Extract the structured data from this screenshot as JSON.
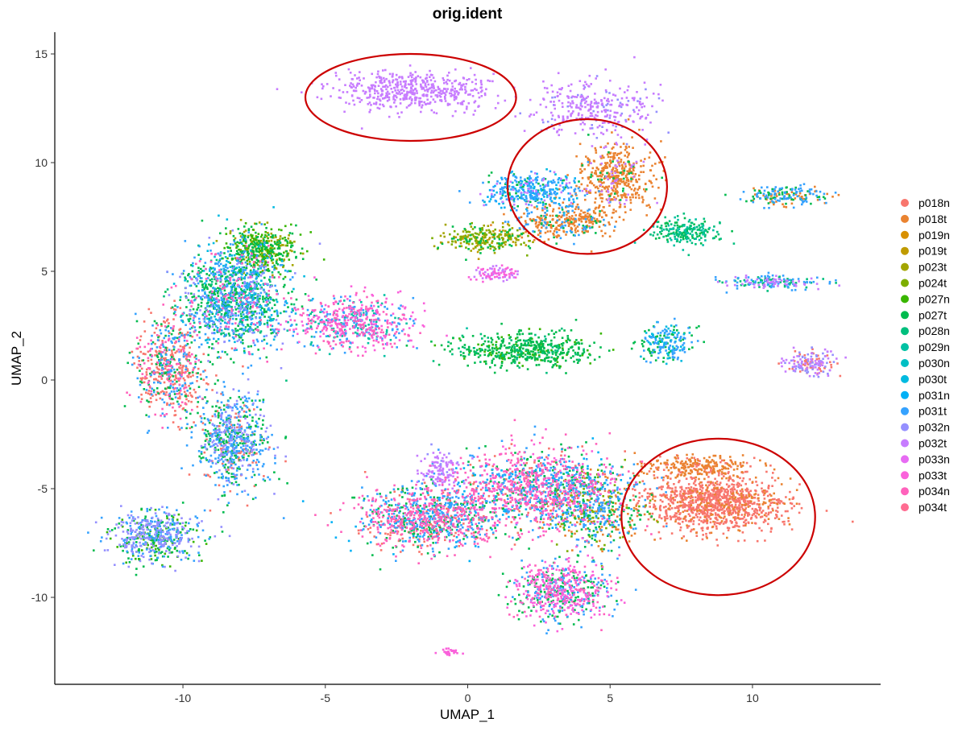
{
  "chart_data": {
    "type": "scatter",
    "title": "orig.ident",
    "xlabel": "UMAP_1",
    "ylabel": "UMAP_2",
    "xlim": [
      -14.5,
      14.5
    ],
    "ylim": [
      -14,
      16
    ],
    "x_ticks": [
      -10,
      -5,
      0,
      5,
      10
    ],
    "y_ticks": [
      -10,
      -5,
      0,
      5,
      10,
      15
    ],
    "x_tick_labels": [
      "-10",
      "-5",
      "0",
      "5",
      "10"
    ],
    "y_tick_labels": [
      "-10",
      "-5",
      "0",
      "5",
      "10",
      "15"
    ],
    "grid": false,
    "legend_position": "right",
    "series": [
      {
        "name": "p018n",
        "color": "#F8766D"
      },
      {
        "name": "p018t",
        "color": "#EA8331"
      },
      {
        "name": "p019n",
        "color": "#D89000"
      },
      {
        "name": "p019t",
        "color": "#C09B00"
      },
      {
        "name": "p023t",
        "color": "#A3A500"
      },
      {
        "name": "p024t",
        "color": "#7CAE00"
      },
      {
        "name": "p027n",
        "color": "#39B600"
      },
      {
        "name": "p027t",
        "color": "#00BB4E"
      },
      {
        "name": "p028n",
        "color": "#00BF7D"
      },
      {
        "name": "p029n",
        "color": "#00C1A3"
      },
      {
        "name": "p030n",
        "color": "#00BFC4"
      },
      {
        "name": "p030t",
        "color": "#00BAE0"
      },
      {
        "name": "p031n",
        "color": "#00B0F6"
      },
      {
        "name": "p031t",
        "color": "#35A2FF"
      },
      {
        "name": "p032n",
        "color": "#9590FF"
      },
      {
        "name": "p032t",
        "color": "#C77CFF"
      },
      {
        "name": "p033n",
        "color": "#E76BF3"
      },
      {
        "name": "p033t",
        "color": "#FA62DB"
      },
      {
        "name": "p034n",
        "color": "#FF62BC"
      },
      {
        "name": "p034t",
        "color": "#FF6C91"
      }
    ],
    "clusters": [
      {
        "cx": -2.0,
        "cy": 13.3,
        "rx": 3.4,
        "ry": 1.1,
        "n": 500,
        "mix": [
          [
            15,
            1
          ]
        ]
      },
      {
        "cx": 4.5,
        "cy": 12.5,
        "rx": 2.4,
        "ry": 1.5,
        "n": 300,
        "mix": [
          [
            15,
            0.8
          ],
          [
            14,
            0.2
          ]
        ]
      },
      {
        "cx": 5.2,
        "cy": 9.2,
        "rx": 1.6,
        "ry": 2.0,
        "n": 480,
        "mix": [
          [
            1,
            0.85
          ],
          [
            15,
            0.1
          ],
          [
            7,
            0.05
          ]
        ]
      },
      {
        "cx": 3.3,
        "cy": 7.3,
        "rx": 2.2,
        "ry": 0.9,
        "n": 320,
        "mix": [
          [
            1,
            0.7
          ],
          [
            13,
            0.2
          ],
          [
            7,
            0.1
          ]
        ]
      },
      {
        "cx": 2.2,
        "cy": 8.7,
        "rx": 2.0,
        "ry": 1.0,
        "n": 380,
        "mix": [
          [
            13,
            0.45
          ],
          [
            12,
            0.2
          ],
          [
            11,
            0.15
          ],
          [
            7,
            0.1
          ],
          [
            15,
            0.1
          ]
        ]
      },
      {
        "cx": 0.6,
        "cy": 6.5,
        "rx": 1.8,
        "ry": 0.7,
        "n": 260,
        "mix": [
          [
            4,
            0.3
          ],
          [
            5,
            0.3
          ],
          [
            7,
            0.2
          ],
          [
            3,
            0.2
          ]
        ]
      },
      {
        "cx": 7.7,
        "cy": 6.8,
        "rx": 1.3,
        "ry": 0.7,
        "n": 200,
        "mix": [
          [
            8,
            0.5
          ],
          [
            7,
            0.3
          ],
          [
            9,
            0.2
          ]
        ]
      },
      {
        "cx": 1.0,
        "cy": 4.9,
        "rx": 1.0,
        "ry": 0.4,
        "n": 90,
        "mix": [
          [
            17,
            0.6
          ],
          [
            15,
            0.4
          ]
        ]
      },
      {
        "cx": 11.2,
        "cy": 8.5,
        "rx": 1.8,
        "ry": 0.5,
        "n": 180,
        "mix": [
          [
            13,
            0.4
          ],
          [
            7,
            0.3
          ],
          [
            1,
            0.3
          ]
        ]
      },
      {
        "cx": 10.8,
        "cy": 4.5,
        "rx": 2.0,
        "ry": 0.4,
        "n": 180,
        "mix": [
          [
            13,
            0.4
          ],
          [
            8,
            0.3
          ],
          [
            15,
            0.3
          ]
        ]
      },
      {
        "cx": 7.0,
        "cy": 1.7,
        "rx": 1.1,
        "ry": 1.0,
        "n": 190,
        "mix": [
          [
            13,
            0.4
          ],
          [
            7,
            0.3
          ],
          [
            11,
            0.3
          ]
        ]
      },
      {
        "cx": 12.0,
        "cy": 0.8,
        "rx": 1.1,
        "ry": 0.7,
        "n": 170,
        "mix": [
          [
            14,
            0.35
          ],
          [
            15,
            0.35
          ],
          [
            0,
            0.3
          ]
        ]
      },
      {
        "cx": 2.0,
        "cy": 1.4,
        "rx": 2.9,
        "ry": 0.9,
        "n": 500,
        "mix": [
          [
            7,
            0.7
          ],
          [
            6,
            0.2
          ],
          [
            8,
            0.1
          ]
        ]
      },
      {
        "cx": -10.5,
        "cy": 0.5,
        "rx": 1.4,
        "ry": 3.0,
        "n": 600,
        "mix": [
          [
            0,
            0.45
          ],
          [
            18,
            0.2
          ],
          [
            13,
            0.2
          ],
          [
            7,
            0.15
          ]
        ]
      },
      {
        "cx": -8.2,
        "cy": 3.8,
        "rx": 2.2,
        "ry": 2.8,
        "n": 1300,
        "mix": [
          [
            7,
            0.3
          ],
          [
            13,
            0.25
          ],
          [
            11,
            0.15
          ],
          [
            18,
            0.1
          ],
          [
            14,
            0.1
          ],
          [
            8,
            0.1
          ]
        ]
      },
      {
        "cx": -7.2,
        "cy": 6.0,
        "rx": 1.5,
        "ry": 1.2,
        "n": 400,
        "mix": [
          [
            6,
            0.4
          ],
          [
            7,
            0.3
          ],
          [
            4,
            0.3
          ]
        ]
      },
      {
        "cx": -4.0,
        "cy": 2.6,
        "rx": 2.5,
        "ry": 1.4,
        "n": 600,
        "mix": [
          [
            17,
            0.35
          ],
          [
            18,
            0.25
          ],
          [
            13,
            0.25
          ],
          [
            9,
            0.15
          ]
        ]
      },
      {
        "cx": -8.3,
        "cy": -2.8,
        "rx": 1.6,
        "ry": 2.6,
        "n": 700,
        "mix": [
          [
            13,
            0.35
          ],
          [
            7,
            0.3
          ],
          [
            14,
            0.2
          ],
          [
            0,
            0.15
          ]
        ]
      },
      {
        "cx": -11.0,
        "cy": -7.2,
        "rx": 1.8,
        "ry": 1.5,
        "n": 550,
        "mix": [
          [
            14,
            0.4
          ],
          [
            13,
            0.25
          ],
          [
            7,
            0.2
          ],
          [
            6,
            0.15
          ]
        ]
      },
      {
        "cx": -1.0,
        "cy": -4.2,
        "rx": 0.8,
        "ry": 1.0,
        "n": 120,
        "mix": [
          [
            15,
            0.9
          ],
          [
            14,
            0.1
          ]
        ]
      },
      {
        "cx": -1.3,
        "cy": -6.3,
        "rx": 3.0,
        "ry": 1.8,
        "n": 1100,
        "mix": [
          [
            18,
            0.4
          ],
          [
            0,
            0.15
          ],
          [
            13,
            0.2
          ],
          [
            7,
            0.15
          ],
          [
            12,
            0.1
          ]
        ]
      },
      {
        "cx": 2.5,
        "cy": -5.0,
        "rx": 3.0,
        "ry": 2.1,
        "n": 1200,
        "mix": [
          [
            18,
            0.3
          ],
          [
            17,
            0.15
          ],
          [
            13,
            0.2
          ],
          [
            12,
            0.1
          ],
          [
            7,
            0.15
          ],
          [
            0,
            0.1
          ]
        ]
      },
      {
        "cx": 4.5,
        "cy": -6.0,
        "rx": 2.2,
        "ry": 2.1,
        "n": 500,
        "mix": [
          [
            13,
            0.3
          ],
          [
            7,
            0.3
          ],
          [
            5,
            0.2
          ],
          [
            1,
            0.2
          ]
        ]
      },
      {
        "cx": 3.3,
        "cy": -9.7,
        "rx": 2.0,
        "ry": 1.6,
        "n": 650,
        "mix": [
          [
            17,
            0.35
          ],
          [
            13,
            0.25
          ],
          [
            7,
            0.25
          ],
          [
            18,
            0.15
          ]
        ]
      },
      {
        "cx": 8.7,
        "cy": -5.7,
        "rx": 2.9,
        "ry": 1.5,
        "n": 1100,
        "mix": [
          [
            0,
            0.85
          ],
          [
            1,
            0.15
          ]
        ]
      },
      {
        "cx": 8.0,
        "cy": -4.0,
        "rx": 2.2,
        "ry": 0.6,
        "n": 250,
        "mix": [
          [
            1,
            0.8
          ],
          [
            0,
            0.2
          ]
        ]
      },
      {
        "cx": -0.6,
        "cy": -12.5,
        "rx": 0.4,
        "ry": 0.2,
        "n": 30,
        "mix": [
          [
            17,
            1
          ]
        ]
      }
    ],
    "annotations": [
      {
        "type": "ellipse",
        "cx": -2.0,
        "cy": 13.0,
        "rx": 3.7,
        "ry": 2.0,
        "color": "#CC0000"
      },
      {
        "type": "ellipse",
        "cx": 4.2,
        "cy": 8.9,
        "rx": 2.8,
        "ry": 3.1,
        "color": "#CC0000"
      },
      {
        "type": "ellipse",
        "cx": 8.8,
        "cy": -6.3,
        "rx": 3.4,
        "ry": 3.6,
        "color": "#CC0000"
      }
    ]
  }
}
